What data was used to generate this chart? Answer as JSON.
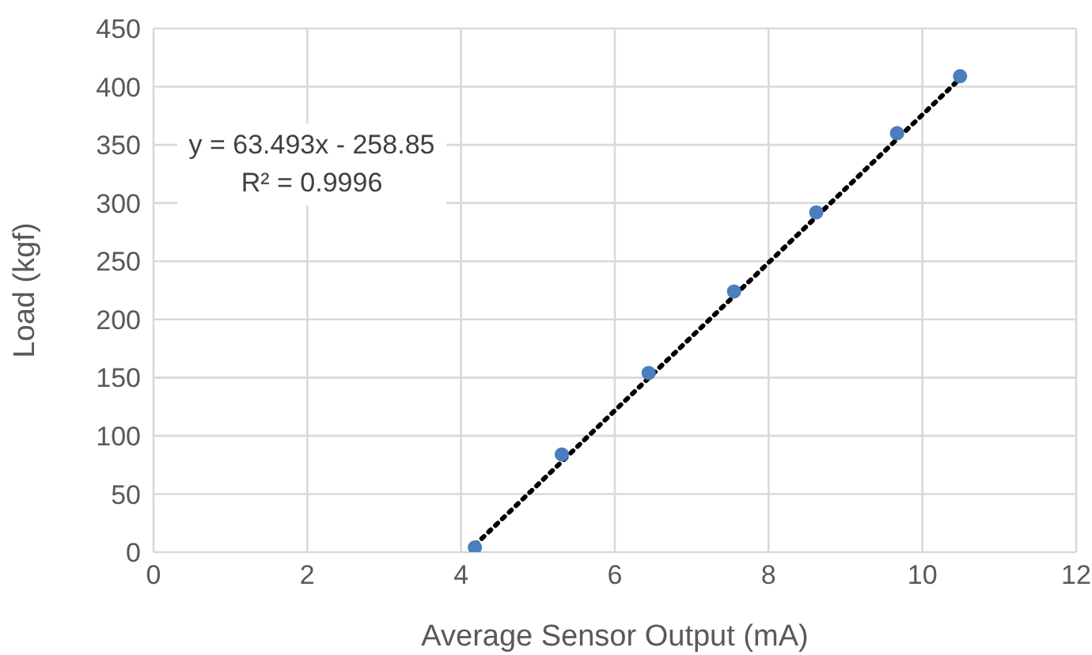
{
  "chart_data": {
    "type": "scatter",
    "xlabel": "Average Sensor Output (mA)",
    "ylabel": "Load (kgf)",
    "x": [
      4.18,
      5.31,
      6.44,
      7.55,
      8.62,
      9.67,
      10.49
    ],
    "series": [
      {
        "type": "scatter",
        "color": "#4a7ebf",
        "values": [
          4,
          84,
          154,
          224,
          292,
          360,
          409
        ],
        "marker": "circle"
      },
      {
        "type": "line",
        "color": "#000000",
        "x": [
          4.18,
          10.49
        ],
        "values": [
          6,
          407
        ],
        "line_style": "dotted",
        "marker": "none"
      }
    ],
    "annotations": [
      "y = 63.493x - 258.85",
      "R² = 0.9996"
    ],
    "xlim": [
      0,
      12
    ],
    "xticks": [
      0,
      2,
      4,
      6,
      8,
      10,
      12
    ],
    "ylim": [
      0,
      450
    ],
    "yticks": [
      0,
      50,
      100,
      150,
      200,
      250,
      300,
      350,
      400,
      450
    ],
    "grid": true
  }
}
